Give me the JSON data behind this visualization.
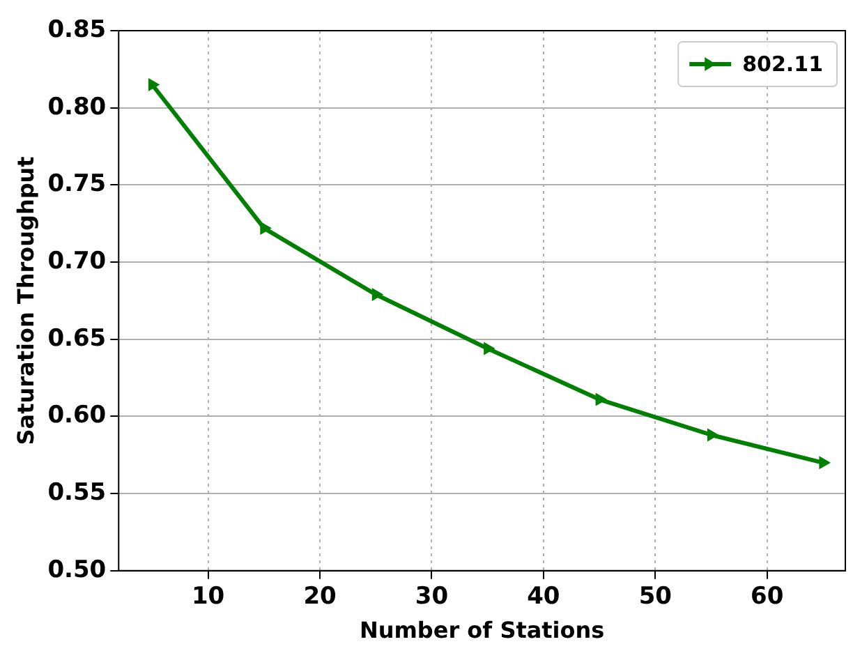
{
  "chart_data": {
    "type": "line",
    "xlabel": "Number of Stations",
    "ylabel": "Saturation Throughput",
    "x": [
      5,
      15,
      25,
      35,
      45,
      55,
      65
    ],
    "series": [
      {
        "name": "802.11",
        "color": "#008000",
        "values": [
          0.815,
          0.722,
          0.679,
          0.644,
          0.611,
          0.588,
          0.57
        ]
      }
    ],
    "xlim": [
      2,
      67
    ],
    "xticks": [
      10,
      20,
      30,
      40,
      50,
      60
    ],
    "ylim": [
      0.5,
      0.85
    ],
    "yticks": [
      {
        "value": 0.5,
        "label": "0.50"
      },
      {
        "value": 0.55,
        "label": "0.55"
      },
      {
        "value": 0.6,
        "label": "0.60"
      },
      {
        "value": 0.65,
        "label": "0.65"
      },
      {
        "value": 0.7,
        "label": "0.70"
      },
      {
        "value": 0.75,
        "label": "0.75"
      },
      {
        "value": 0.8,
        "label": "0.80"
      },
      {
        "value": 0.85,
        "label": "0.85"
      }
    ],
    "grid": true,
    "legend": "top right",
    "marker": "triangle",
    "line_style": "solid"
  }
}
